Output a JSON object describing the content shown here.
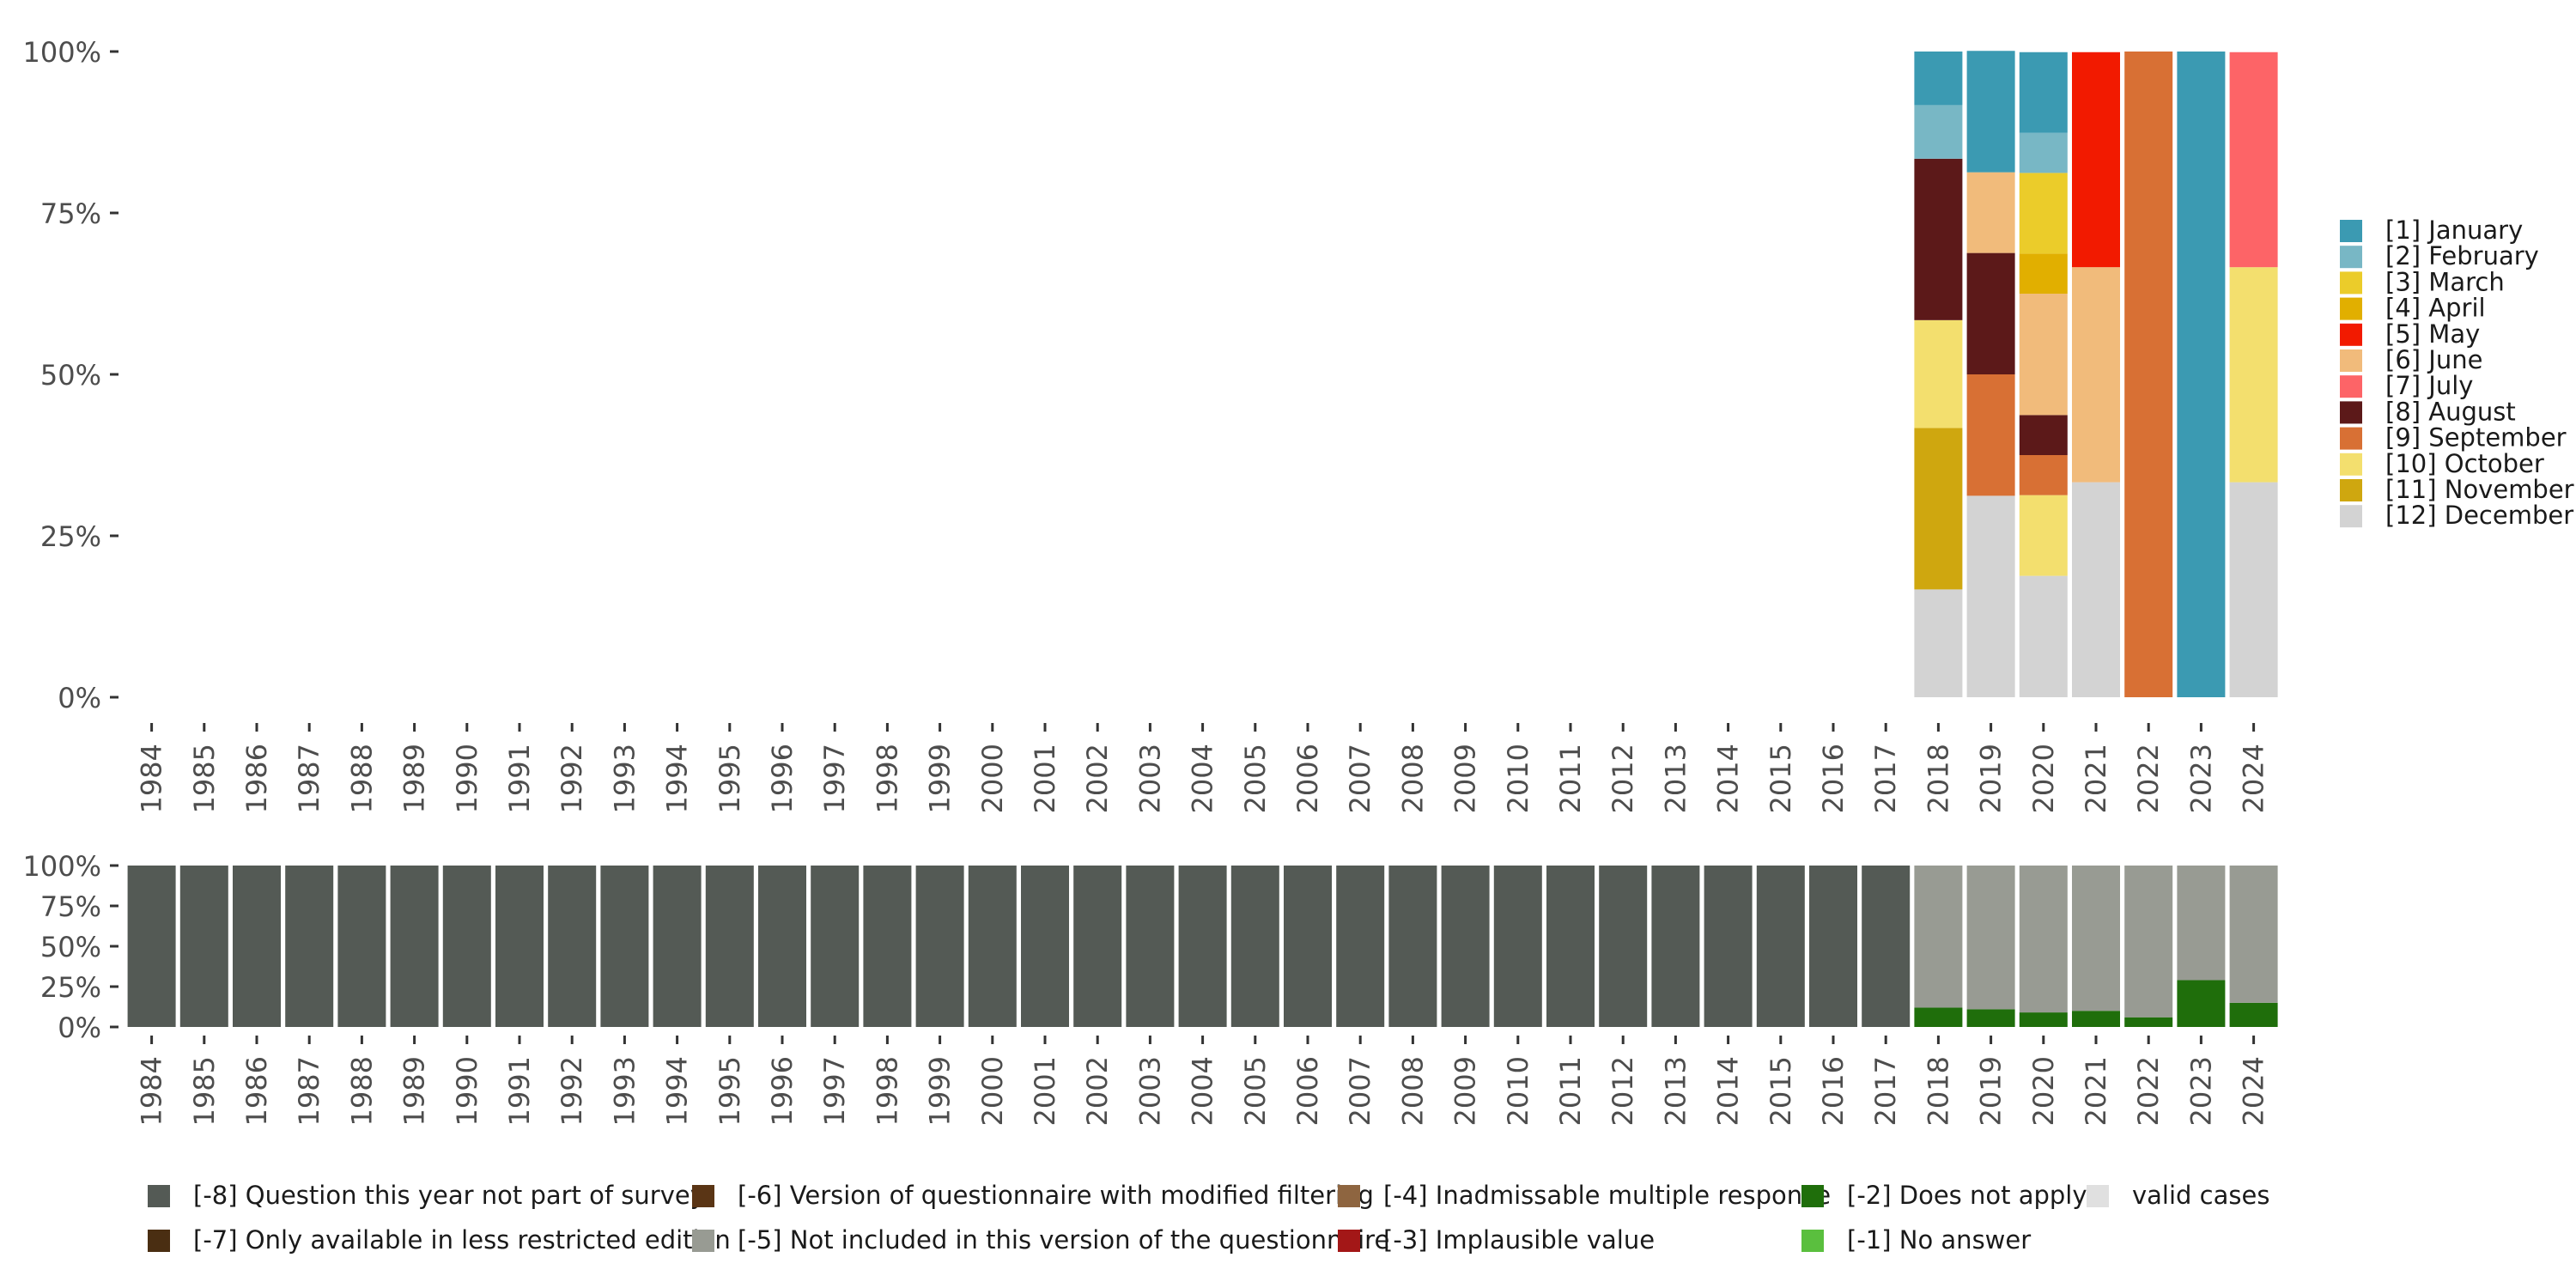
{
  "chart_data": [
    {
      "type": "bar",
      "stacked": true,
      "panel": "top",
      "ylim": [
        0,
        100
      ],
      "y_ticks": [
        "0%",
        "25%",
        "50%",
        "75%",
        "100%"
      ],
      "y_tick_values": [
        0,
        25,
        50,
        75,
        100
      ],
      "categories": [
        "1984",
        "1985",
        "1986",
        "1987",
        "1988",
        "1989",
        "1990",
        "1991",
        "1992",
        "1993",
        "1994",
        "1995",
        "1996",
        "1997",
        "1998",
        "1999",
        "2000",
        "2001",
        "2002",
        "2003",
        "2004",
        "2005",
        "2006",
        "2007",
        "2008",
        "2009",
        "2010",
        "2011",
        "2012",
        "2013",
        "2014",
        "2015",
        "2016",
        "2017",
        "2018",
        "2019",
        "2020",
        "2021",
        "2022",
        "2023",
        "2024"
      ],
      "series": [
        {
          "name": "[12] December",
          "color": "#d3d3d3",
          "values": [
            0,
            0,
            0,
            0,
            0,
            0,
            0,
            0,
            0,
            0,
            0,
            0,
            0,
            0,
            0,
            0,
            0,
            0,
            0,
            0,
            0,
            0,
            0,
            0,
            0,
            0,
            0,
            0,
            0,
            0,
            0,
            0,
            0,
            0,
            16.7,
            31.2,
            18.8,
            33.3,
            0,
            0,
            33.3
          ]
        },
        {
          "name": "[11] November",
          "color": "#cfa70f",
          "values": [
            0,
            0,
            0,
            0,
            0,
            0,
            0,
            0,
            0,
            0,
            0,
            0,
            0,
            0,
            0,
            0,
            0,
            0,
            0,
            0,
            0,
            0,
            0,
            0,
            0,
            0,
            0,
            0,
            0,
            0,
            0,
            0,
            0,
            0,
            25,
            0,
            0,
            0,
            0,
            0,
            0
          ]
        },
        {
          "name": "[10] October",
          "color": "#f3df6e",
          "values": [
            0,
            0,
            0,
            0,
            0,
            0,
            0,
            0,
            0,
            0,
            0,
            0,
            0,
            0,
            0,
            0,
            0,
            0,
            0,
            0,
            0,
            0,
            0,
            0,
            0,
            0,
            0,
            0,
            0,
            0,
            0,
            0,
            0,
            0,
            16.7,
            0,
            12.5,
            0,
            0,
            0,
            33.3
          ]
        },
        {
          "name": "[9] September",
          "color": "#d87034",
          "values": [
            0,
            0,
            0,
            0,
            0,
            0,
            0,
            0,
            0,
            0,
            0,
            0,
            0,
            0,
            0,
            0,
            0,
            0,
            0,
            0,
            0,
            0,
            0,
            0,
            0,
            0,
            0,
            0,
            0,
            0,
            0,
            0,
            0,
            0,
            0,
            18.8,
            6.2,
            0,
            100,
            0,
            0
          ]
        },
        {
          "name": "[8] August",
          "color": "#5c1919",
          "values": [
            0,
            0,
            0,
            0,
            0,
            0,
            0,
            0,
            0,
            0,
            0,
            0,
            0,
            0,
            0,
            0,
            0,
            0,
            0,
            0,
            0,
            0,
            0,
            0,
            0,
            0,
            0,
            0,
            0,
            0,
            0,
            0,
            0,
            0,
            25,
            18.8,
            6.2,
            0,
            0,
            0,
            0
          ]
        },
        {
          "name": "[7] July",
          "color": "#fd6467",
          "values": [
            0,
            0,
            0,
            0,
            0,
            0,
            0,
            0,
            0,
            0,
            0,
            0,
            0,
            0,
            0,
            0,
            0,
            0,
            0,
            0,
            0,
            0,
            0,
            0,
            0,
            0,
            0,
            0,
            0,
            0,
            0,
            0,
            0,
            0,
            0,
            0,
            0,
            0,
            0,
            0,
            33.3
          ]
        },
        {
          "name": "[6] June",
          "color": "#f1bb7b",
          "values": [
            0,
            0,
            0,
            0,
            0,
            0,
            0,
            0,
            0,
            0,
            0,
            0,
            0,
            0,
            0,
            0,
            0,
            0,
            0,
            0,
            0,
            0,
            0,
            0,
            0,
            0,
            0,
            0,
            0,
            0,
            0,
            0,
            0,
            0,
            0,
            12.5,
            18.8,
            33.3,
            0,
            0,
            0
          ]
        },
        {
          "name": "[5] May",
          "color": "#f21a00",
          "values": [
            0,
            0,
            0,
            0,
            0,
            0,
            0,
            0,
            0,
            0,
            0,
            0,
            0,
            0,
            0,
            0,
            0,
            0,
            0,
            0,
            0,
            0,
            0,
            0,
            0,
            0,
            0,
            0,
            0,
            0,
            0,
            0,
            0,
            0,
            0,
            0,
            0,
            33.3,
            0,
            0,
            0
          ]
        },
        {
          "name": "[4] April",
          "color": "#e1af00",
          "values": [
            0,
            0,
            0,
            0,
            0,
            0,
            0,
            0,
            0,
            0,
            0,
            0,
            0,
            0,
            0,
            0,
            0,
            0,
            0,
            0,
            0,
            0,
            0,
            0,
            0,
            0,
            0,
            0,
            0,
            0,
            0,
            0,
            0,
            0,
            0,
            0,
            6.2,
            0,
            0,
            0,
            0
          ]
        },
        {
          "name": "[3] March",
          "color": "#ebcc2a",
          "values": [
            0,
            0,
            0,
            0,
            0,
            0,
            0,
            0,
            0,
            0,
            0,
            0,
            0,
            0,
            0,
            0,
            0,
            0,
            0,
            0,
            0,
            0,
            0,
            0,
            0,
            0,
            0,
            0,
            0,
            0,
            0,
            0,
            0,
            0,
            0,
            0,
            12.5,
            0,
            0,
            0,
            0
          ]
        },
        {
          "name": "[2] February",
          "color": "#78b7c5",
          "values": [
            0,
            0,
            0,
            0,
            0,
            0,
            0,
            0,
            0,
            0,
            0,
            0,
            0,
            0,
            0,
            0,
            0,
            0,
            0,
            0,
            0,
            0,
            0,
            0,
            0,
            0,
            0,
            0,
            0,
            0,
            0,
            0,
            0,
            0,
            8.3,
            0,
            6.2,
            0,
            0,
            0,
            0
          ]
        },
        {
          "name": "[1] January",
          "color": "#3b9ab2",
          "values": [
            0,
            0,
            0,
            0,
            0,
            0,
            0,
            0,
            0,
            0,
            0,
            0,
            0,
            0,
            0,
            0,
            0,
            0,
            0,
            0,
            0,
            0,
            0,
            0,
            0,
            0,
            0,
            0,
            0,
            0,
            0,
            0,
            0,
            0,
            8.3,
            18.8,
            12.5,
            0,
            0,
            100,
            0
          ]
        }
      ],
      "legend_order": [
        "[1] January",
        "[2] February",
        "[3] March",
        "[4] April",
        "[5] May",
        "[6] June",
        "[7] July",
        "[8] August",
        "[9] September",
        "[10] October",
        "[11] November",
        "[12] December"
      ],
      "legend_position": "right",
      "grid": false
    },
    {
      "type": "bar",
      "stacked": true,
      "panel": "bottom",
      "ylim": [
        0,
        100
      ],
      "y_ticks": [
        "0%",
        "25%",
        "50%",
        "75%",
        "100%"
      ],
      "y_tick_values": [
        0,
        25,
        50,
        75,
        100
      ],
      "categories": [
        "1984",
        "1985",
        "1986",
        "1987",
        "1988",
        "1989",
        "1990",
        "1991",
        "1992",
        "1993",
        "1994",
        "1995",
        "1996",
        "1997",
        "1998",
        "1999",
        "2000",
        "2001",
        "2002",
        "2003",
        "2004",
        "2005",
        "2006",
        "2007",
        "2008",
        "2009",
        "2010",
        "2011",
        "2012",
        "2013",
        "2014",
        "2015",
        "2016",
        "2017",
        "2018",
        "2019",
        "2020",
        "2021",
        "2022",
        "2023",
        "2024"
      ],
      "series": [
        {
          "name": "[-2] Does not apply",
          "color": "#1f6e0b",
          "values": [
            0,
            0,
            0,
            0,
            0,
            0,
            0,
            0,
            0,
            0,
            0,
            0,
            0,
            0,
            0,
            0,
            0,
            0,
            0,
            0,
            0,
            0,
            0,
            0,
            0,
            0,
            0,
            0,
            0,
            0,
            0,
            0,
            0,
            0,
            12,
            11,
            9,
            10,
            6,
            29,
            15
          ]
        },
        {
          "name": "[-5] Not included in this version of the questionnaire",
          "color": "#989b93",
          "values": [
            0,
            0,
            0,
            0,
            0,
            0,
            0,
            0,
            0,
            0,
            0,
            0,
            0,
            0,
            0,
            0,
            0,
            0,
            0,
            0,
            0,
            0,
            0,
            0,
            0,
            0,
            0,
            0,
            0,
            0,
            0,
            0,
            0,
            0,
            88,
            89,
            91,
            90,
            94,
            71,
            85
          ]
        },
        {
          "name": "[-8] Question this year not part of survey",
          "color": "#545a55",
          "values": [
            100,
            100,
            100,
            100,
            100,
            100,
            100,
            100,
            100,
            100,
            100,
            100,
            100,
            100,
            100,
            100,
            100,
            100,
            100,
            100,
            100,
            100,
            100,
            100,
            100,
            100,
            100,
            100,
            100,
            100,
            100,
            100,
            100,
            100,
            0,
            0,
            0,
            0,
            0,
            0,
            0
          ]
        }
      ],
      "legend_items": [
        {
          "name": "[-8] Question this year not part of survey",
          "color": "#545a55"
        },
        {
          "name": "[-7] Only available in less restricted edition",
          "color": "#4a2e12"
        },
        {
          "name": "[-6] Version of questionnaire with modified filtering",
          "color": "#5a3515"
        },
        {
          "name": "[-5] Not included in this version of the questionnaire",
          "color": "#989b93"
        },
        {
          "name": "[-4] Inadmissable multiple response",
          "color": "#8e6540"
        },
        {
          "name": "[-3] Implausible value",
          "color": "#a31717"
        },
        {
          "name": "[-2] Does not apply",
          "color": "#1f6e0b"
        },
        {
          "name": "[-1] No answer",
          "color": "#5abf3e"
        },
        {
          "name": "valid cases",
          "color": "#e0e0e0"
        }
      ],
      "legend_position": "bottom",
      "grid": false
    }
  ]
}
